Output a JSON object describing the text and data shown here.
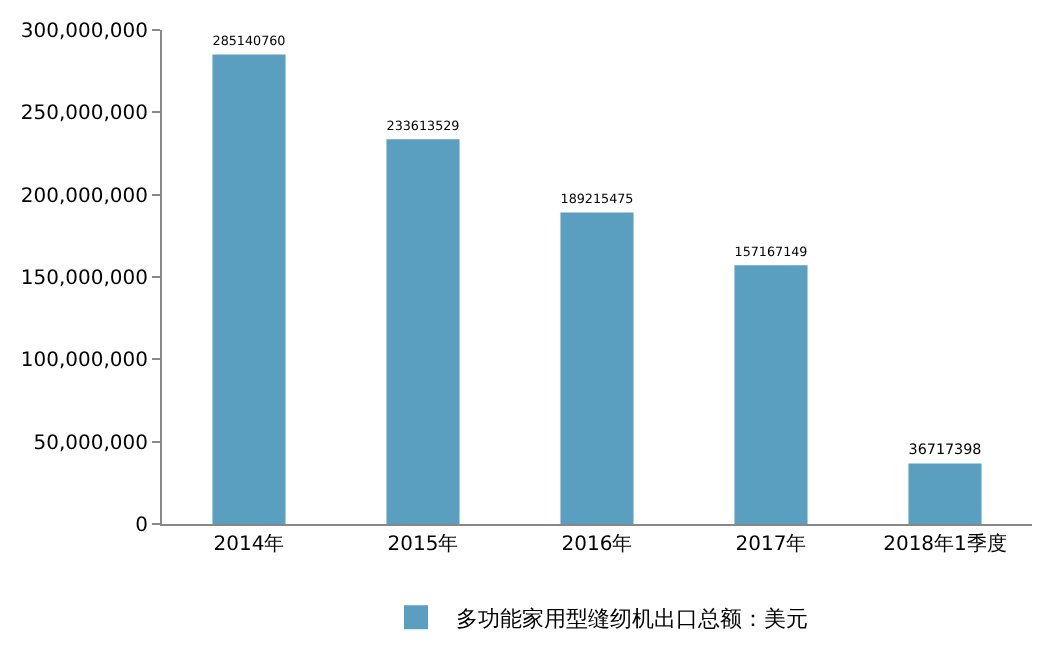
{
  "chart_data": {
    "type": "bar",
    "categories": [
      "2014年",
      "2015年",
      "2016年",
      "2017年",
      "2018年1季度"
    ],
    "series": [
      {
        "name": "多功能家用型缝纫机出口总额：美元",
        "color": "#5a9ec0",
        "values": [
          285140760,
          233613529,
          189215475,
          157167149,
          36717398
        ]
      }
    ],
    "ylim": [
      0,
      300000000
    ],
    "yticks": [
      0,
      {
        "value": 50000000,
        "label": "50,000,000"
      },
      {
        "value": 100000000,
        "label": "100,000,000"
      },
      {
        "value": 150000000,
        "label": "150,000,000"
      },
      {
        "value": 200000000,
        "label": "200,000,000"
      },
      {
        "value": 250000000,
        "label": "250,000,000"
      },
      {
        "value": 300000000,
        "label": "300,000,000"
      }
    ],
    "data_labels": true,
    "legend": "bottom"
  }
}
